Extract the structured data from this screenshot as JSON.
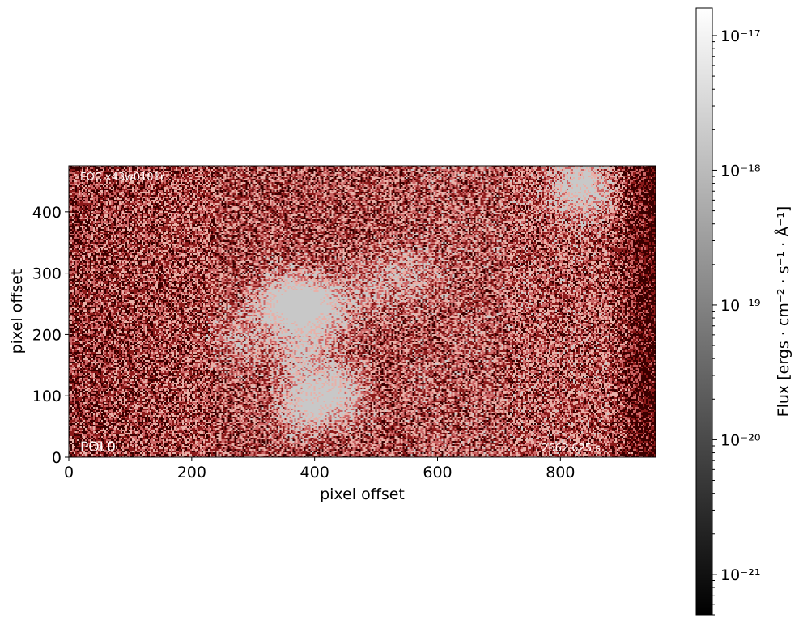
{
  "chart_data": {
    "type": "heatmap",
    "title": "",
    "xlabel": "pixel offset",
    "ylabel": "pixel offset",
    "xlim": [
      0,
      955
    ],
    "ylim": [
      0,
      475
    ],
    "x_ticks": [
      0,
      200,
      400,
      600,
      800
    ],
    "y_ticks": [
      0,
      100,
      200,
      300,
      400
    ],
    "x_tick_labels": [
      "0",
      "200",
      "400",
      "600",
      "800"
    ],
    "y_tick_labels": [
      "0",
      "100",
      "200",
      "300",
      "400"
    ],
    "image_annotations": {
      "top_left": "FOC x43w0101r",
      "bottom_left": "POL0",
      "bottom_right": "2662.625 s"
    },
    "colormap_colors": [
      "#3a0000",
      "#8b1a1a",
      "#cc6666",
      "#e8b0a8",
      "#c8c8c8"
    ],
    "bright_regions": [
      {
        "x": 380,
        "y": 250,
        "strength": 0.9
      },
      {
        "x": 340,
        "y": 250,
        "strength": 0.7
      },
      {
        "x": 420,
        "y": 240,
        "strength": 0.6
      },
      {
        "x": 380,
        "y": 170,
        "strength": 0.6
      },
      {
        "x": 385,
        "y": 85,
        "strength": 0.9
      },
      {
        "x": 440,
        "y": 105,
        "strength": 0.8
      },
      {
        "x": 500,
        "y": 280,
        "strength": 0.4
      },
      {
        "x": 835,
        "y": 440,
        "strength": 1.0
      },
      {
        "x": 280,
        "y": 190,
        "strength": 0.4
      },
      {
        "x": 560,
        "y": 300,
        "strength": 0.3
      }
    ],
    "colorbar": {
      "label": "Flux [ergs · cm⁻² · s⁻¹ · Å⁻¹]",
      "scale": "log",
      "range": [
        5e-22,
        1.6e-17
      ],
      "tick_labels": [
        "10⁻²¹",
        "10⁻²⁰",
        "10⁻¹⁹",
        "10⁻¹⁸",
        "10⁻¹⁷"
      ],
      "tick_values": [
        -21,
        -20,
        -19,
        -18,
        -17
      ],
      "colors": [
        "#000000",
        "#ffffff"
      ]
    }
  }
}
